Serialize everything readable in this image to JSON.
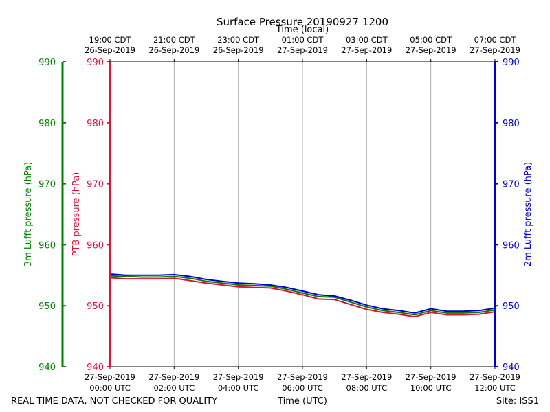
{
  "chart_data": {
    "type": "line",
    "title": "Surface Pressure 20190927 1200",
    "top_axis_label": "Time (local)",
    "xlabel": "Time (UTC)",
    "x_hours_range": [
      0,
      12
    ],
    "ylim": [
      940,
      990
    ],
    "y_ticks": [
      940,
      950,
      960,
      970,
      980,
      990
    ],
    "bottom_ticks": [
      {
        "hour": 0,
        "line1": "27-Sep-2019",
        "line2": "00:00 UTC"
      },
      {
        "hour": 2,
        "line1": "27-Sep-2019",
        "line2": "02:00 UTC"
      },
      {
        "hour": 4,
        "line1": "27-Sep-2019",
        "line2": "04:00 UTC"
      },
      {
        "hour": 6,
        "line1": "27-Sep-2019",
        "line2": "06:00 UTC"
      },
      {
        "hour": 8,
        "line1": "27-Sep-2019",
        "line2": "08:00 UTC"
      },
      {
        "hour": 10,
        "line1": "27-Sep-2019",
        "line2": "10:00 UTC"
      },
      {
        "hour": 12,
        "line1": "27-Sep-2019",
        "line2": "12:00 UTC"
      }
    ],
    "top_ticks": [
      {
        "hour": 0,
        "line1": "19:00 CDT",
        "line2": "26-Sep-2019"
      },
      {
        "hour": 2,
        "line1": "21:00 CDT",
        "line2": "26-Sep-2019"
      },
      {
        "hour": 4,
        "line1": "23:00 CDT",
        "line2": "26-Sep-2019"
      },
      {
        "hour": 6,
        "line1": "01:00 CDT",
        "line2": "27-Sep-2019"
      },
      {
        "hour": 8,
        "line1": "03:00 CDT",
        "line2": "27-Sep-2019"
      },
      {
        "hour": 10,
        "line1": "05:00 CDT",
        "line2": "27-Sep-2019"
      },
      {
        "hour": 12,
        "line1": "07:00 CDT",
        "line2": "27-Sep-2019"
      }
    ],
    "axes": {
      "lufft3m": {
        "label": "3m Lufft pressure (hPa)",
        "color": "#008000"
      },
      "ptb": {
        "label": "PTB pressure (hPa)",
        "color": "#dc143c"
      },
      "lufft2m": {
        "label": "2m Lufft pressure (hPa)",
        "color": "#0000cd"
      }
    },
    "x": [
      0,
      0.5,
      1,
      1.5,
      2,
      2.5,
      3,
      3.5,
      4,
      4.5,
      5,
      5.5,
      6,
      6.5,
      7,
      7.5,
      8,
      8.5,
      9,
      9.5,
      10,
      10.5,
      11,
      11.5,
      12
    ],
    "series": [
      {
        "name": "3m Lufft pressure",
        "axis": "lufft3m",
        "color": "#008000",
        "values": [
          954.9,
          954.8,
          954.7,
          954.7,
          954.8,
          954.5,
          954.0,
          953.7,
          953.4,
          953.3,
          953.2,
          952.7,
          952.1,
          951.5,
          951.4,
          950.6,
          949.8,
          949.2,
          948.9,
          948.5,
          949.2,
          948.8,
          948.8,
          948.9,
          949.3
        ]
      },
      {
        "name": "PTB pressure",
        "axis": "ptb",
        "color": "#dc143c",
        "values": [
          954.6,
          954.4,
          954.4,
          954.4,
          954.5,
          954.1,
          953.7,
          953.4,
          953.1,
          953.0,
          952.9,
          952.4,
          951.8,
          951.1,
          951.0,
          950.2,
          949.4,
          948.9,
          948.6,
          948.2,
          948.9,
          948.5,
          948.5,
          948.6,
          949.0
        ]
      },
      {
        "name": "2m Lufft pressure",
        "axis": "lufft2m",
        "color": "#0000cd",
        "values": [
          955.2,
          955.0,
          955.0,
          955.0,
          955.1,
          954.8,
          954.3,
          954.0,
          953.7,
          953.6,
          953.4,
          953.0,
          952.4,
          951.8,
          951.6,
          950.9,
          950.1,
          949.5,
          949.2,
          948.8,
          949.5,
          949.1,
          949.1,
          949.2,
          949.6
        ]
      }
    ]
  },
  "footer": {
    "disclaimer": "REAL TIME DATA, NOT CHECKED FOR QUALITY",
    "site": "Site: ISS1"
  }
}
